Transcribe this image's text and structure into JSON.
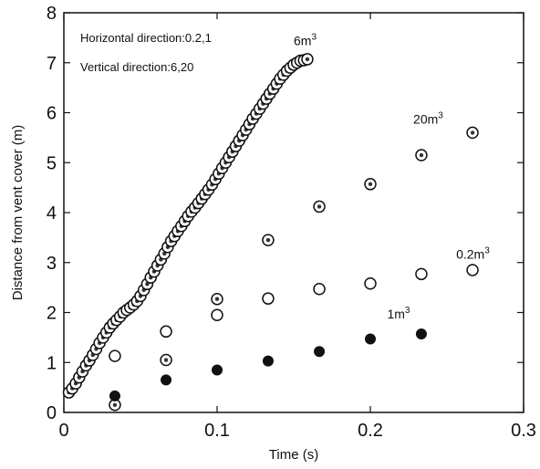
{
  "chart_data": {
    "type": "scatter",
    "title": "",
    "xlabel": "Time (s)",
    "ylabel": "Distance from vent cover (m)",
    "xlim": [
      0,
      0.3
    ],
    "ylim": [
      0,
      8
    ],
    "x_ticks": [
      "0",
      "0.1",
      "0.2",
      "0.3"
    ],
    "y_ticks": [
      "0",
      "1",
      "2",
      "3",
      "4",
      "5",
      "6",
      "7",
      "8"
    ],
    "grid": false,
    "annotations": [
      "Horizontal direction:0.2,1",
      "Vertical direction:6,20"
    ],
    "series": [
      {
        "label_base": "6m",
        "label_sup": "3",
        "label_pos": [
          0.15,
          7.35
        ],
        "marker": "ring-dot",
        "points": [
          [
            0.0033,
            0.4
          ],
          [
            0.0055,
            0.48
          ],
          [
            0.0078,
            0.58
          ],
          [
            0.01,
            0.7
          ],
          [
            0.0122,
            0.82
          ],
          [
            0.0145,
            0.94
          ],
          [
            0.0167,
            1.04
          ],
          [
            0.0189,
            1.15
          ],
          [
            0.0211,
            1.27
          ],
          [
            0.0233,
            1.39
          ],
          [
            0.0256,
            1.5
          ],
          [
            0.0278,
            1.6
          ],
          [
            0.03,
            1.7
          ],
          [
            0.0322,
            1.78
          ],
          [
            0.0344,
            1.85
          ],
          [
            0.0367,
            1.92
          ],
          [
            0.0389,
            2.0
          ],
          [
            0.0411,
            2.05
          ],
          [
            0.0433,
            2.1
          ],
          [
            0.0456,
            2.16
          ],
          [
            0.0478,
            2.23
          ],
          [
            0.05,
            2.33
          ],
          [
            0.0522,
            2.45
          ],
          [
            0.0544,
            2.57
          ],
          [
            0.0567,
            2.7
          ],
          [
            0.0589,
            2.82
          ],
          [
            0.0611,
            2.94
          ],
          [
            0.0633,
            3.06
          ],
          [
            0.0656,
            3.18
          ],
          [
            0.0678,
            3.31
          ],
          [
            0.07,
            3.43
          ],
          [
            0.0722,
            3.53
          ],
          [
            0.0744,
            3.63
          ],
          [
            0.0767,
            3.73
          ],
          [
            0.0789,
            3.83
          ],
          [
            0.0811,
            3.93
          ],
          [
            0.0833,
            4.02
          ],
          [
            0.0856,
            4.1
          ],
          [
            0.0878,
            4.19
          ],
          [
            0.09,
            4.28
          ],
          [
            0.0922,
            4.37
          ],
          [
            0.0944,
            4.46
          ],
          [
            0.0967,
            4.56
          ],
          [
            0.0989,
            4.67
          ],
          [
            0.1011,
            4.78
          ],
          [
            0.1033,
            4.89
          ],
          [
            0.1056,
            5.0
          ],
          [
            0.1078,
            5.11
          ],
          [
            0.11,
            5.22
          ],
          [
            0.1122,
            5.33
          ],
          [
            0.1144,
            5.44
          ],
          [
            0.1167,
            5.55
          ],
          [
            0.1189,
            5.66
          ],
          [
            0.1211,
            5.77
          ],
          [
            0.1233,
            5.88
          ],
          [
            0.1256,
            5.98
          ],
          [
            0.1278,
            6.08
          ],
          [
            0.13,
            6.18
          ],
          [
            0.1322,
            6.28
          ],
          [
            0.1344,
            6.38
          ],
          [
            0.1367,
            6.48
          ],
          [
            0.1389,
            6.58
          ],
          [
            0.1411,
            6.68
          ],
          [
            0.1433,
            6.76
          ],
          [
            0.1456,
            6.84
          ],
          [
            0.1478,
            6.9
          ],
          [
            0.15,
            6.96
          ],
          [
            0.1522,
            7.0
          ],
          [
            0.1544,
            7.04
          ],
          [
            0.1567,
            7.05
          ],
          [
            0.1589,
            7.07
          ]
        ]
      },
      {
        "label_base": "20m",
        "label_sup": "3",
        "label_pos": [
          0.228,
          5.78
        ],
        "marker": "ring-dot",
        "points": [
          [
            0.0333,
            0.15
          ],
          [
            0.0667,
            1.05
          ],
          [
            0.1,
            2.27
          ],
          [
            0.1333,
            3.45
          ],
          [
            0.1667,
            4.12
          ],
          [
            0.2,
            4.57
          ],
          [
            0.2333,
            5.15
          ],
          [
            0.2667,
            5.6
          ]
        ]
      },
      {
        "label_base": "0.2m",
        "label_sup": "3",
        "label_pos": [
          0.256,
          3.08
        ],
        "marker": "open",
        "points": [
          [
            0.0333,
            1.13
          ],
          [
            0.0667,
            1.62
          ],
          [
            0.1,
            1.95
          ],
          [
            0.1333,
            2.28
          ],
          [
            0.1667,
            2.47
          ],
          [
            0.2,
            2.58
          ],
          [
            0.2333,
            2.77
          ],
          [
            0.2667,
            2.85
          ]
        ]
      },
      {
        "label_base": "1m",
        "label_sup": "3",
        "label_pos": [
          0.211,
          1.88
        ],
        "marker": "filled",
        "points": [
          [
            0.0333,
            0.33
          ],
          [
            0.0667,
            0.65
          ],
          [
            0.1,
            0.85
          ],
          [
            0.1333,
            1.03
          ],
          [
            0.1667,
            1.22
          ],
          [
            0.2,
            1.47
          ],
          [
            0.2333,
            1.57
          ]
        ]
      }
    ]
  }
}
